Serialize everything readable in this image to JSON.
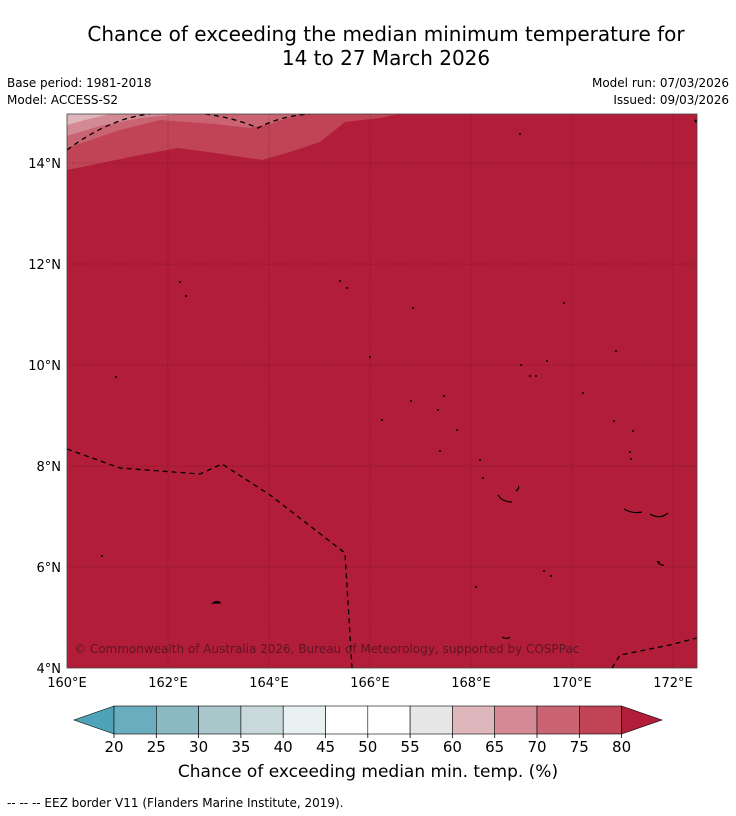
{
  "title_line1": "Chance of exceeding the median minimum temperature for",
  "title_line2": "14 to 27 March 2026",
  "base_period": "Base period: 1981-2018",
  "model": "Model: ACCESS-S2",
  "model_run": "Model run: 07/03/2026",
  "issued": "Issued: 09/03/2026",
  "copyright": "© Commonwealth of Australia 2026, Bureau of Meteorology, supported by COSPPac",
  "lat_labels": [
    "14°N",
    "12°N",
    "10°N",
    "8°N",
    "6°N",
    "4°N"
  ],
  "lon_labels": [
    "160°E",
    "162°E",
    "164°E",
    "166°E",
    "168°E",
    "170°E",
    "172°E"
  ],
  "colorbar": {
    "ticks": [
      "20",
      "25",
      "30",
      "35",
      "40",
      "45",
      "50",
      "55",
      "60",
      "65",
      "70",
      "75",
      "80"
    ],
    "colors": [
      "#6aadbe",
      "#8ab8c3",
      "#a9c6ca",
      "#c9d9db",
      "#e9f0f1",
      "#ffffff",
      "#ffffff",
      "#e7e7e7",
      "#dfb6bb",
      "#d48a95",
      "#ca6472",
      "#c04456"
    ],
    "low_color": "#4ea3b6",
    "high_color": "#b21e39",
    "label": "Chance of exceeding median min. temp. (%)"
  },
  "legend_footer": "--  --  -- EEZ border V11 (Flanders Marine Institute, 2019)."
}
